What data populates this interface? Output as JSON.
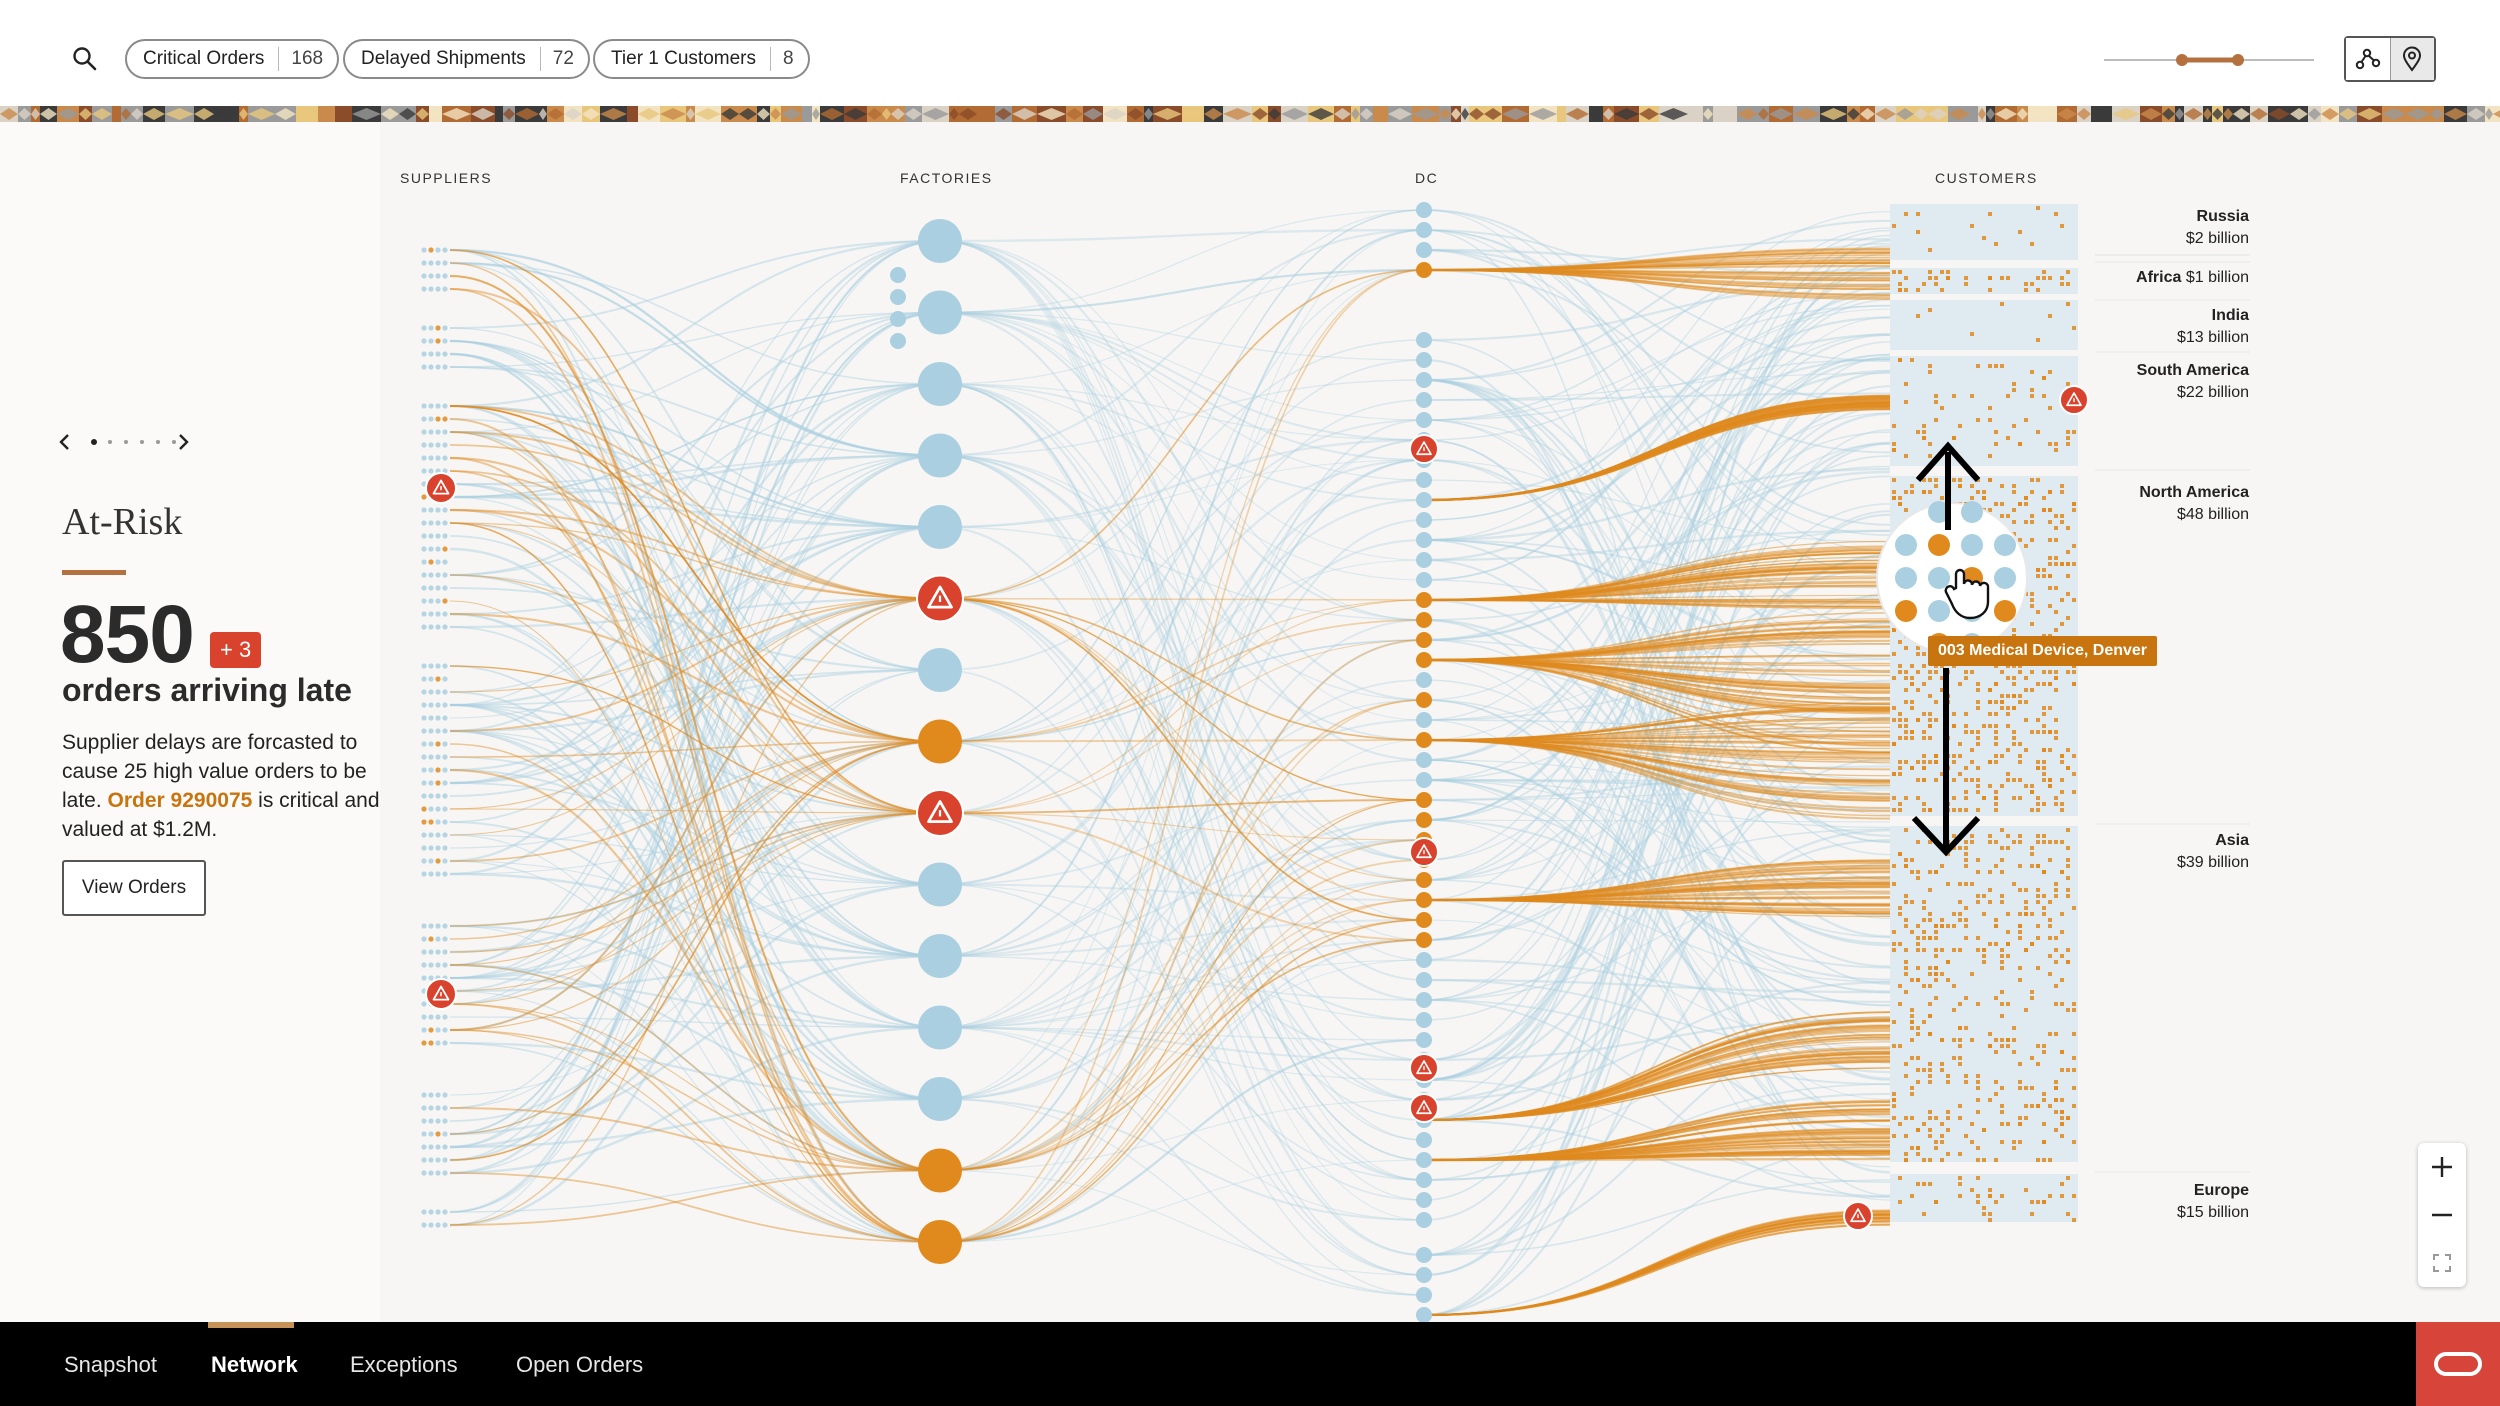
{
  "filters": [
    {
      "label": "Critical Orders",
      "count": "168"
    },
    {
      "label": "Delayed Shipments",
      "count": "72"
    },
    {
      "label": "Tier 1 Customers",
      "count": "8"
    }
  ],
  "view_toggle": {
    "active": "network-icon",
    "inactive": "map-pin-icon"
  },
  "panel": {
    "title": "At-Risk",
    "number": "850",
    "delta": "+ 3",
    "subheading": "orders arriving late",
    "desc_before": "Supplier delays are forcasted to cause 25 high value orders to be late. ",
    "order_link": "Order 9290075",
    "desc_after": " is critical and valued at $1.2M.",
    "button": "View Orders",
    "pager": {
      "current": 1,
      "total": 6
    }
  },
  "columns": [
    "SUPPLIERS",
    "FACTORIES",
    "DC",
    "CUSTOMERS"
  ],
  "regions": [
    {
      "name": "Russia",
      "value": "$2 billion",
      "inline": false
    },
    {
      "name": "Africa",
      "value": "$1 billion",
      "inline": true
    },
    {
      "name": "India",
      "value": "$13 billion",
      "inline": false
    },
    {
      "name": "South America",
      "value": "$22 billion",
      "inline": false
    },
    {
      "name": "North America",
      "value": "$48 billion",
      "inline": false
    },
    {
      "name": "Asia",
      "value": "$39 billion",
      "inline": false
    },
    {
      "name": "Europe",
      "value": "$15 billion",
      "inline": false
    }
  ],
  "factories": [
    "ok",
    "ok",
    "ok",
    "ok",
    "ok",
    "alert",
    "ok",
    "orange",
    "alert",
    "ok",
    "ok",
    "ok",
    "ok",
    "orange",
    "orange"
  ],
  "tooltip": "003 Medical Device, Denver",
  "tabs": [
    {
      "label": "Snapshot",
      "active": false
    },
    {
      "label": "Network",
      "active": true
    },
    {
      "label": "Exceptions",
      "active": false
    },
    {
      "label": "Open Orders",
      "active": false
    }
  ],
  "colors": {
    "blue": "#a9cfe0",
    "orange": "#e08a1e",
    "alert": "#d9422c",
    "accent": "#c8740f"
  }
}
